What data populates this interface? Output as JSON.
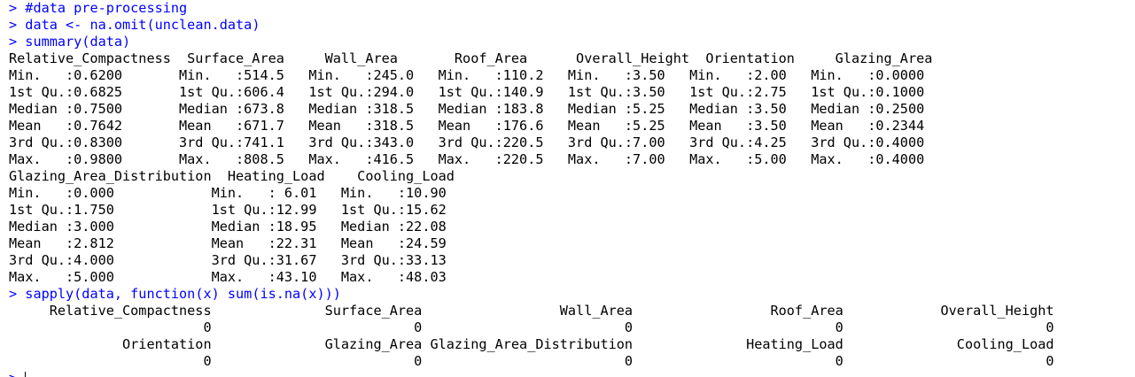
{
  "console": {
    "prompt": "> ",
    "commands": [
      "#data pre-processing",
      "data <- na.omit(unclean.data)",
      "summary(data)",
      "sapply(data, function(x) sum(is.na(x)))"
    ],
    "summary_output": [
      "Relative_Compactness  Surface_Area     Wall_Area       Roof_Area      Overall_Height  Orientation     Glazing_Area   ",
      "Min.   :0.6200       Min.   :514.5   Min.   :245.0   Min.   :110.2   Min.   :3.50   Min.   :2.00   Min.   :0.0000  ",
      "1st Qu.:0.6825       1st Qu.:606.4   1st Qu.:294.0   1st Qu.:140.9   1st Qu.:3.50   1st Qu.:2.75   1st Qu.:0.1000  ",
      "Median :0.7500       Median :673.8   Median :318.5   Median :183.8   Median :5.25   Median :3.50   Median :0.2500  ",
      "Mean   :0.7642       Mean   :671.7   Mean   :318.5   Mean   :176.6   Mean   :5.25   Mean   :3.50   Mean   :0.2344  ",
      "3rd Qu.:0.8300       3rd Qu.:741.1   3rd Qu.:343.0   3rd Qu.:220.5   3rd Qu.:7.00   3rd Qu.:4.25   3rd Qu.:0.4000  ",
      "Max.   :0.9800       Max.   :808.5   Max.   :416.5   Max.   :220.5   Max.   :7.00   Max.   :5.00   Max.   :0.4000  ",
      "Glazing_Area_Distribution  Heating_Load    Cooling_Load  ",
      "Min.   :0.000            Min.   : 6.01   Min.   :10.90  ",
      "1st Qu.:1.750            1st Qu.:12.99   1st Qu.:15.62  ",
      "Median :3.000            Median :18.95   Median :22.08  ",
      "Mean   :2.812            Mean   :22.31   Mean   :24.59  ",
      "3rd Qu.:4.000            3rd Qu.:31.67   3rd Qu.:33.13  ",
      "Max.   :5.000            Max.   :43.10   Max.   :48.03  "
    ],
    "sapply_output": [
      "     Relative_Compactness              Surface_Area                 Wall_Area                 Roof_Area            Overall_Height ",
      "                        0                         0                         0                         0                         0 ",
      "              Orientation              Glazing_Area Glazing_Area_Distribution              Heating_Load              Cooling_Load ",
      "                        0                         0                         0                         0                         0 "
    ]
  }
}
